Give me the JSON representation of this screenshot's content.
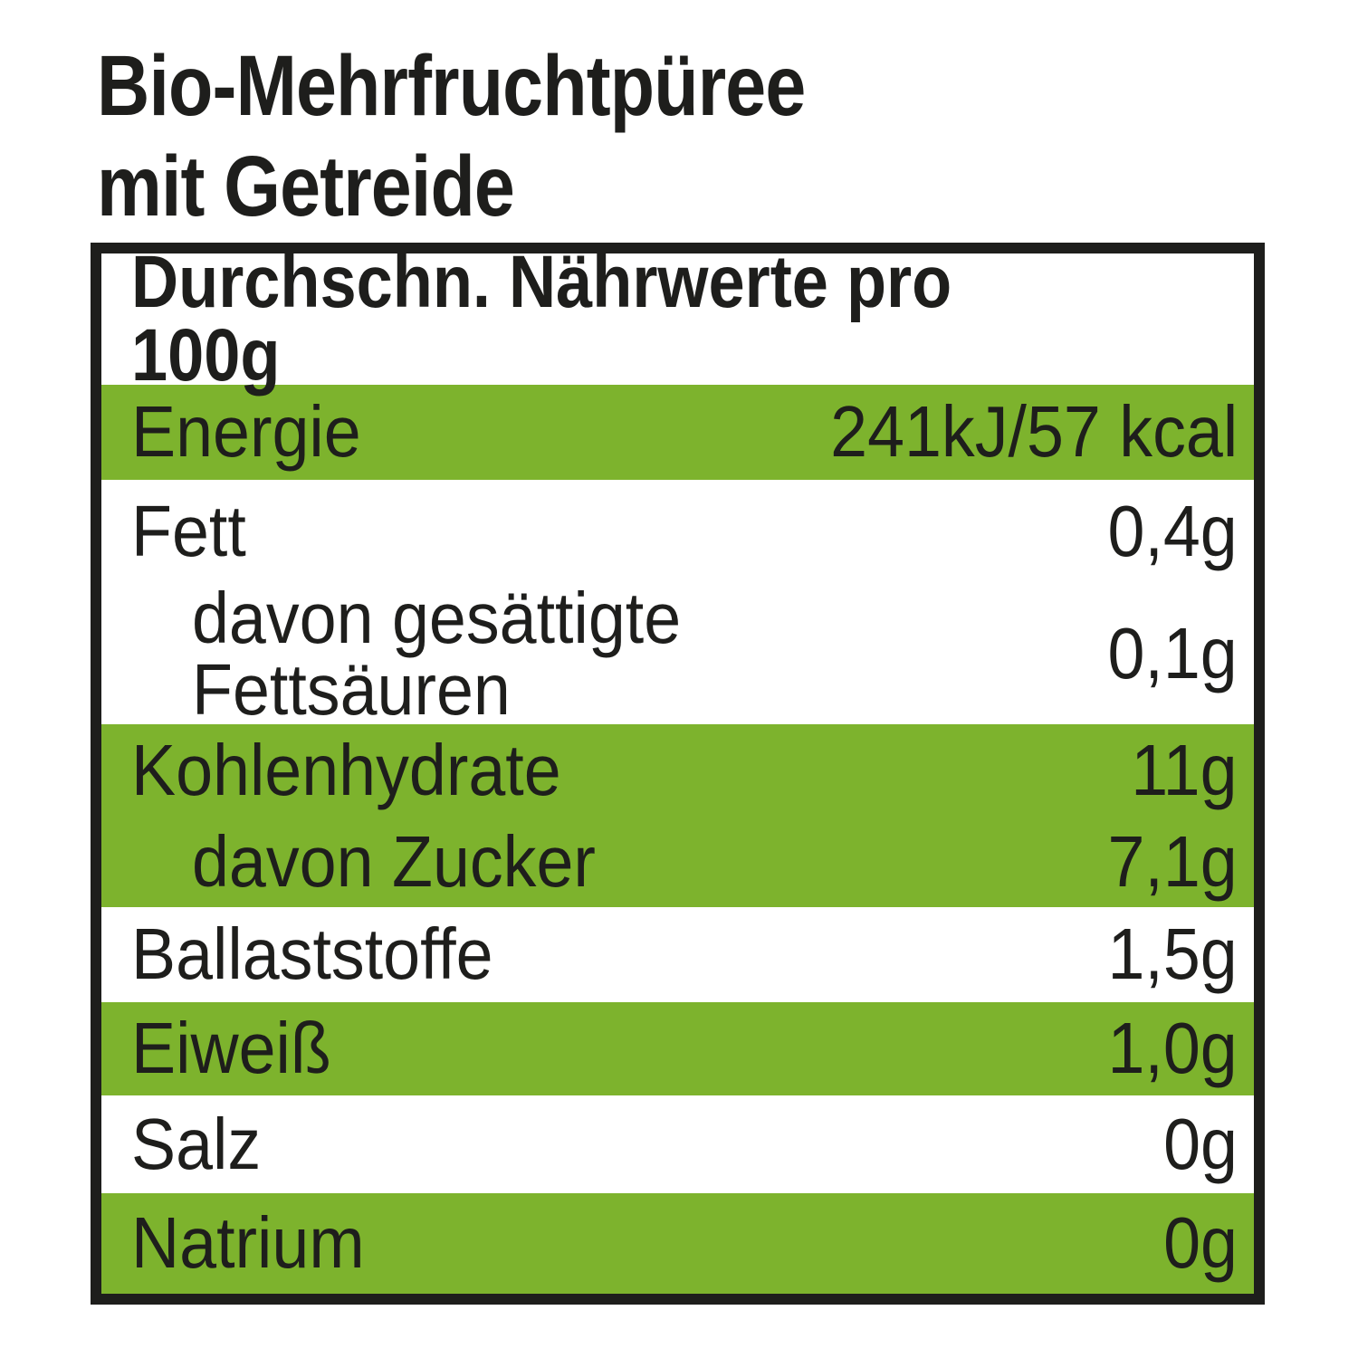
{
  "product": {
    "title_line1": "Bio-Mehrfruchtpüree",
    "title_line2": "mit Getreide"
  },
  "table": {
    "header": "Durchschn. Nährwerte pro 100g",
    "rows": [
      {
        "label": "Energie",
        "value": "241kJ/57 kcal",
        "highlight": true,
        "indent": false
      },
      {
        "label": "Fett",
        "value": "0,4g",
        "highlight": false,
        "indent": false
      },
      {
        "label": "davon gesättigte Fettsäuren",
        "value": "0,1g",
        "highlight": false,
        "indent": true
      },
      {
        "label": "Kohlenhydrate",
        "value": "11g",
        "highlight": true,
        "indent": false
      },
      {
        "label": "davon Zucker",
        "value": "7,1g",
        "highlight": true,
        "indent": true
      },
      {
        "label": "Ballaststoffe",
        "value": "1,5g",
        "highlight": false,
        "indent": false
      },
      {
        "label": "Eiweiß",
        "value": "1,0g",
        "highlight": true,
        "indent": false
      },
      {
        "label": "Salz",
        "value": "0g",
        "highlight": false,
        "indent": false
      },
      {
        "label": "Natrium",
        "value": "0g",
        "highlight": true,
        "indent": false
      }
    ]
  },
  "colors": {
    "highlight_green": "#7db32d",
    "text_black": "#1e1e1c",
    "background": "#ffffff"
  }
}
